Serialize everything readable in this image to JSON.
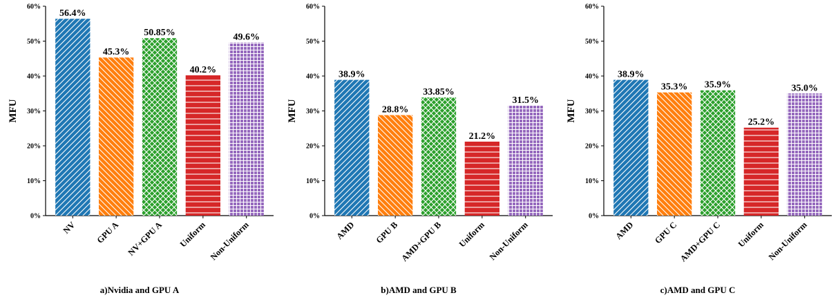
{
  "chart_data": [
    {
      "type": "bar",
      "categories": [
        "NV",
        "GPU A",
        "NV+GPU A",
        "Uniform",
        "Non-Uniform"
      ],
      "values": [
        56.4,
        45.3,
        50.85,
        40.2,
        49.6
      ],
      "value_labels": [
        "56.4%",
        "45.3%",
        "50.85%",
        "40.2%",
        "49.6%"
      ],
      "ylabel": "MFU",
      "ylim": [
        0,
        60
      ],
      "yticks": [
        "0%",
        "10%",
        "20%",
        "30%",
        "40%",
        "50%",
        "60%"
      ],
      "caption": "a)Nvidia and GPU A",
      "grid": false
    },
    {
      "type": "bar",
      "categories": [
        "AMD",
        "GPU B",
        "AMD+GPU B",
        "Uniform",
        "Non-Uniform"
      ],
      "values": [
        38.9,
        28.8,
        33.85,
        21.2,
        31.5
      ],
      "value_labels": [
        "38.9%",
        "28.8%",
        "33.85%",
        "21.2%",
        "31.5%"
      ],
      "ylabel": "MFU",
      "ylim": [
        0,
        60
      ],
      "yticks": [
        "0%",
        "10%",
        "20%",
        "30%",
        "40%",
        "50%",
        "60%"
      ],
      "caption": "b)AMD and GPU B",
      "grid": false
    },
    {
      "type": "bar",
      "categories": [
        "AMD",
        "GPU C",
        "AMD+GPU C",
        "Uniform",
        "Non-Uniform"
      ],
      "values": [
        38.9,
        35.3,
        35.9,
        25.2,
        35.0
      ],
      "value_labels": [
        "38.9%",
        "35.3%",
        "35.9%",
        "25.2%",
        "35.0%"
      ],
      "ylabel": "MFU",
      "ylim": [
        0,
        60
      ],
      "yticks": [
        "0%",
        "10%",
        "20%",
        "30%",
        "40%",
        "50%",
        "60%"
      ],
      "caption": "c)AMD and GPU C",
      "grid": false
    }
  ],
  "bar_colors": [
    "#1f77b4",
    "#ff7f0e",
    "#2ca02c",
    "#d62728",
    "#9467bd"
  ],
  "bar_hatches": [
    "forward-diagonal",
    "back-diagonal",
    "cross-diagonal",
    "horizontal",
    "grid"
  ]
}
